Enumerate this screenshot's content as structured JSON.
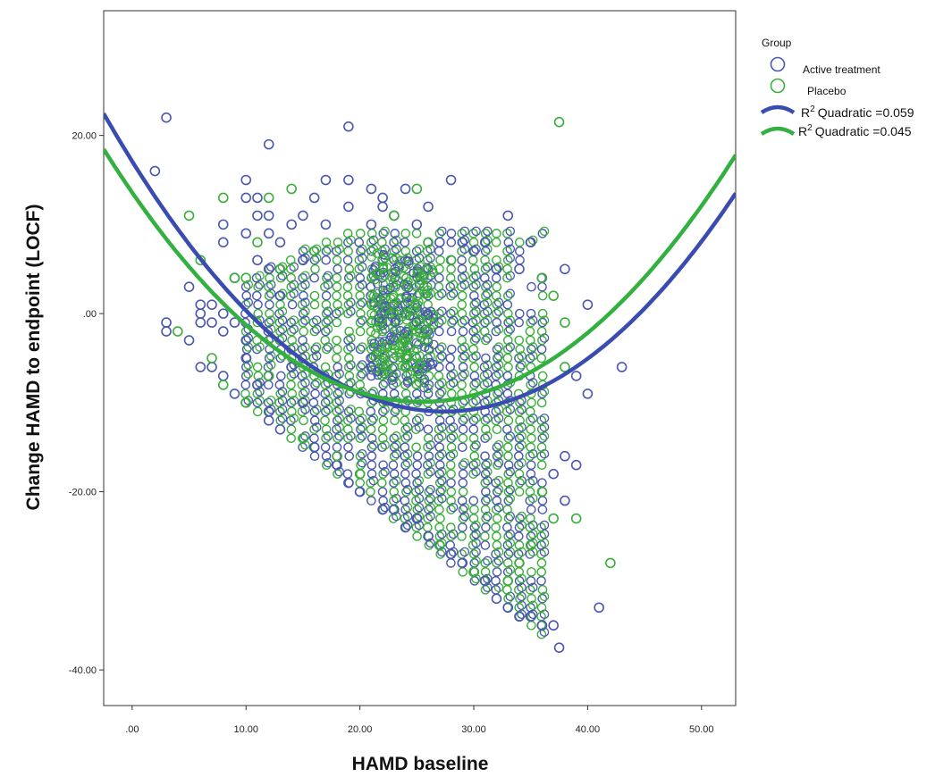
{
  "chart_data": {
    "type": "scatter",
    "title": "",
    "xlabel": "HAMD baseline",
    "ylabel": "Change HAMD to endpoint (LOCF)",
    "xlim": [
      -2.5,
      53
    ],
    "ylim": [
      -44,
      34
    ],
    "x_ticks": [
      0,
      10,
      20,
      30,
      40,
      50
    ],
    "x_tick_labels": [
      ".00",
      "10.00",
      "20.00",
      "30.00",
      "40.00",
      "50.00"
    ],
    "y_ticks": [
      20,
      0,
      -20,
      -40
    ],
    "y_tick_labels": [
      "20.00",
      ".00",
      "-20.00",
      "-40.00"
    ],
    "grid": false,
    "legend": {
      "title": "Group",
      "placement": "top-right outside",
      "fit_prefix": "R",
      "fit_superscript": "2"
    },
    "series": [
      {
        "name": "Active treatment",
        "color": "#4a57b0",
        "marker": "open-circle",
        "points": [
          [
            2,
            16
          ],
          [
            3,
            22
          ],
          [
            3,
            -1
          ],
          [
            3,
            -2
          ],
          [
            5,
            3
          ],
          [
            5,
            -3
          ],
          [
            6,
            1
          ],
          [
            6,
            0
          ],
          [
            6,
            -1
          ],
          [
            6,
            -6
          ],
          [
            7,
            1
          ],
          [
            7,
            -1
          ],
          [
            7,
            -6
          ],
          [
            8,
            10
          ],
          [
            8,
            8
          ],
          [
            8,
            0
          ],
          [
            8,
            -2
          ],
          [
            8,
            -7
          ],
          [
            9,
            4
          ],
          [
            9,
            -1
          ],
          [
            9,
            -9
          ],
          [
            10,
            15
          ],
          [
            10,
            13
          ],
          [
            10,
            9
          ],
          [
            10,
            -3
          ],
          [
            10,
            -5
          ],
          [
            11,
            13
          ],
          [
            11,
            11
          ],
          [
            11,
            6
          ],
          [
            11,
            -8
          ],
          [
            12,
            19
          ],
          [
            12,
            11
          ],
          [
            12,
            9
          ],
          [
            12,
            5
          ],
          [
            12,
            -11
          ],
          [
            12,
            -12
          ],
          [
            13,
            8
          ],
          [
            13,
            2
          ],
          [
            13,
            -13
          ],
          [
            14,
            10
          ],
          [
            14,
            -6
          ],
          [
            15,
            11
          ],
          [
            15,
            6
          ],
          [
            15,
            -10
          ],
          [
            16,
            13
          ],
          [
            16,
            -15
          ],
          [
            17,
            15
          ],
          [
            17,
            10
          ],
          [
            18,
            -17
          ],
          [
            19,
            21
          ],
          [
            19,
            15
          ],
          [
            19,
            12
          ],
          [
            19,
            -19
          ],
          [
            20,
            -20
          ],
          [
            21,
            14
          ],
          [
            21,
            10
          ],
          [
            22,
            13
          ],
          [
            22,
            12
          ],
          [
            22,
            -22
          ],
          [
            23,
            11
          ],
          [
            23,
            -22
          ],
          [
            24,
            14
          ],
          [
            24,
            -24
          ],
          [
            25,
            10
          ],
          [
            25,
            -23
          ],
          [
            26,
            12
          ],
          [
            26,
            -25
          ],
          [
            27,
            8
          ],
          [
            27,
            -26
          ],
          [
            28,
            15
          ],
          [
            28,
            -27
          ],
          [
            29,
            8
          ],
          [
            29,
            -28
          ],
          [
            30,
            7
          ],
          [
            30,
            -29
          ],
          [
            31,
            8
          ],
          [
            31,
            -30
          ],
          [
            32,
            5
          ],
          [
            32,
            -32
          ],
          [
            33,
            11
          ],
          [
            33,
            -33
          ],
          [
            34,
            5
          ],
          [
            34,
            -34
          ],
          [
            35,
            8
          ],
          [
            35,
            -34
          ],
          [
            36,
            -35
          ],
          [
            37,
            -35
          ],
          [
            37,
            -18
          ],
          [
            37.5,
            -37.5
          ],
          [
            38,
            5
          ],
          [
            38,
            -21
          ],
          [
            38,
            -16
          ],
          [
            39,
            -17
          ],
          [
            39,
            -7
          ],
          [
            40,
            -9
          ],
          [
            40,
            1
          ],
          [
            41,
            -33
          ],
          [
            43,
            -6
          ]
        ]
      },
      {
        "name": "Placebo",
        "color": "#3aae3a",
        "marker": "open-circle",
        "points": [
          [
            4,
            -2
          ],
          [
            5,
            11
          ],
          [
            6,
            6
          ],
          [
            7,
            -5
          ],
          [
            8,
            13
          ],
          [
            8,
            -8
          ],
          [
            9,
            4
          ],
          [
            10,
            -10
          ],
          [
            10,
            4
          ],
          [
            11,
            8
          ],
          [
            12,
            13
          ],
          [
            12,
            -7
          ],
          [
            13,
            5
          ],
          [
            14,
            14
          ],
          [
            15,
            -14
          ],
          [
            16,
            7
          ],
          [
            18,
            -16
          ],
          [
            20,
            -18
          ],
          [
            22,
            6
          ],
          [
            23,
            11
          ],
          [
            24,
            -3
          ],
          [
            25,
            14
          ],
          [
            26,
            8
          ],
          [
            27,
            -26
          ],
          [
            28,
            6
          ],
          [
            30,
            -29
          ],
          [
            33,
            -30
          ],
          [
            34,
            -28
          ],
          [
            35,
            -26
          ],
          [
            36,
            -20
          ],
          [
            36,
            4
          ],
          [
            37,
            2
          ],
          [
            37,
            -23
          ],
          [
            37.5,
            21.5
          ],
          [
            38,
            -6
          ],
          [
            38,
            -1
          ],
          [
            39,
            -23
          ],
          [
            42,
            -28
          ]
        ]
      }
    ],
    "dense_region": {
      "description_hidden": true,
      "x_range": [
        10,
        36
      ],
      "active_color": "#4a57b0",
      "placebo_color": "#3aae3a"
    },
    "fit_lines": [
      {
        "series": "Active treatment",
        "type": "quadratic",
        "label": "Quadratic =0.059",
        "color": "#3a4cb0",
        "coef": [
          17.1,
          -2.05,
          0.0374
        ]
      },
      {
        "series": "Placebo",
        "type": "quadratic",
        "label": "Quadratic =0.045",
        "color": "#33b040",
        "coef": [
          13.6,
          -1.85,
          0.0364
        ]
      }
    ]
  }
}
